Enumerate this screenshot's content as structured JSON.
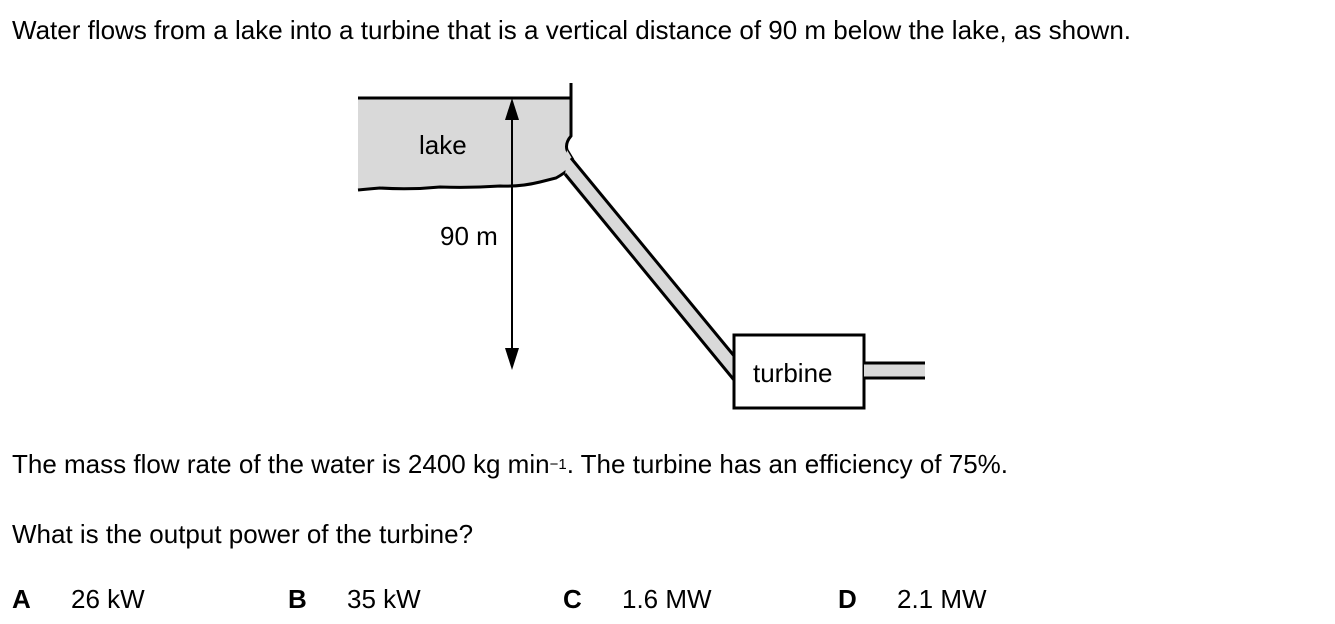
{
  "question": {
    "intro": "Water flows from a lake into a turbine that is a vertical distance of 90 m below the lake, as shown.",
    "given_before_sup": "The mass flow rate of the water is 2400 kg min",
    "given_sup": "−1",
    "given_after_sup": ". The turbine has an efficiency of 75%.",
    "ask": "What is the output power of the turbine?"
  },
  "diagram": {
    "lake_label": "lake",
    "height_label": "90 m",
    "turbine_label": "turbine"
  },
  "options": [
    {
      "letter": "A",
      "value": "26 kW"
    },
    {
      "letter": "B",
      "value": "35 kW"
    },
    {
      "letter": "C",
      "value": "1.6 MW"
    },
    {
      "letter": "D",
      "value": "2.1 MW"
    }
  ],
  "colors": {
    "water": "#d9d9d9",
    "ink": "#000000"
  }
}
